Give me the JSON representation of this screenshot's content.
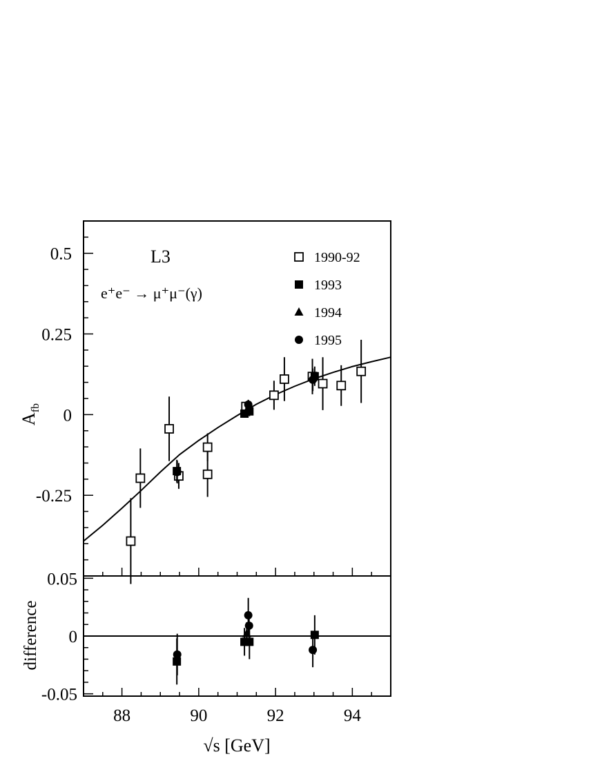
{
  "chart_data": [
    {
      "type": "scatter",
      "panel": "main",
      "title": "",
      "label_experiment": "L3",
      "label_process": "e⁺e⁻ → μ⁺μ⁻(γ)",
      "xlabel": "",
      "ylabel_main": "A",
      "ylabel_sub": "fb",
      "xlim": [
        87.0,
        95.0
      ],
      "ylim": [
        -0.5,
        0.6
      ],
      "yticks": [
        -0.25,
        0,
        0.25,
        0.5
      ],
      "ytick_labels": [
        "-0.25",
        "0",
        "0.25",
        "0.5"
      ],
      "legend_position": "top-right",
      "series": [
        {
          "name": "1990-92",
          "marker": "open-square",
          "points": [
            {
              "x": 88.23,
              "y": -0.392,
              "err": 0.133
            },
            {
              "x": 88.48,
              "y": -0.197,
              "err": 0.092
            },
            {
              "x": 89.23,
              "y": -0.044,
              "err": 0.1
            },
            {
              "x": 89.48,
              "y": -0.19,
              "err": 0.04
            },
            {
              "x": 90.23,
              "y": -0.101,
              "err": 0.043
            },
            {
              "x": 90.23,
              "y": -0.185,
              "err": 0.07
            },
            {
              "x": 91.23,
              "y": 0.025,
              "err": 0.01
            },
            {
              "x": 91.96,
              "y": 0.06,
              "err": 0.045
            },
            {
              "x": 92.23,
              "y": 0.11,
              "err": 0.068
            },
            {
              "x": 92.96,
              "y": 0.118,
              "err": 0.055
            },
            {
              "x": 93.23,
              "y": 0.096,
              "err": 0.082
            },
            {
              "x": 93.71,
              "y": 0.09,
              "err": 0.063
            },
            {
              "x": 94.23,
              "y": 0.134,
              "err": 0.098
            }
          ]
        },
        {
          "name": "1993",
          "marker": "filled-square",
          "points": [
            {
              "x": 89.43,
              "y": -0.175,
              "err": 0.035
            },
            {
              "x": 91.19,
              "y": 0.003,
              "err": 0.012
            },
            {
              "x": 91.32,
              "y": 0.01,
              "err": 0.015
            },
            {
              "x": 93.02,
              "y": 0.119,
              "err": 0.03
            }
          ]
        },
        {
          "name": "1994",
          "marker": "filled-triangle",
          "points": [
            {
              "x": 91.25,
              "y": 0.012,
              "err": 0.01
            }
          ]
        },
        {
          "name": "1995",
          "marker": "filled-circle",
          "points": [
            {
              "x": 89.44,
              "y": -0.178,
              "err": 0.035
            },
            {
              "x": 91.29,
              "y": 0.031,
              "err": 0.015
            },
            {
              "x": 92.97,
              "y": 0.108,
              "err": 0.035
            }
          ]
        }
      ],
      "curve": {
        "name": "",
        "x": [
          87.0,
          87.5,
          88.0,
          88.5,
          89.0,
          89.5,
          90.0,
          90.5,
          91.0,
          91.5,
          92.0,
          92.5,
          93.0,
          93.5,
          94.0,
          94.5,
          95.0
        ],
        "y": [
          -0.392,
          -0.343,
          -0.29,
          -0.235,
          -0.178,
          -0.124,
          -0.08,
          -0.04,
          -0.003,
          0.032,
          0.062,
          0.088,
          0.111,
          0.131,
          0.149,
          0.164,
          0.178
        ]
      }
    },
    {
      "type": "scatter",
      "panel": "difference",
      "title": "",
      "xlabel": "√s [GeV]",
      "ylabel": "difference",
      "xlim": [
        87.0,
        95.0
      ],
      "ylim": [
        -0.052,
        0.052
      ],
      "yticks": [
        -0.05,
        0,
        0.05
      ],
      "ytick_labels": [
        "-0.05",
        "0",
        "0.05"
      ],
      "xticks": [
        88,
        90,
        92,
        94
      ],
      "xtick_labels": [
        "88",
        "90",
        "92",
        "94"
      ],
      "series": [
        {
          "name": "1993",
          "marker": "filled-square",
          "points": [
            {
              "x": 89.43,
              "y": -0.022,
              "err": 0.02
            },
            {
              "x": 91.19,
              "y": -0.005,
              "err": 0.012
            },
            {
              "x": 91.32,
              "y": -0.005,
              "err": 0.015
            },
            {
              "x": 93.02,
              "y": 0.001,
              "err": 0.017
            }
          ]
        },
        {
          "name": "1994",
          "marker": "filled-triangle",
          "points": [
            {
              "x": 91.25,
              "y": 0.002,
              "err": 0.01
            }
          ]
        },
        {
          "name": "1995",
          "marker": "filled-circle",
          "points": [
            {
              "x": 89.44,
              "y": -0.016,
              "err": 0.018
            },
            {
              "x": 91.29,
              "y": 0.018,
              "err": 0.015
            },
            {
              "x": 91.31,
              "y": 0.009,
              "err": 0.01
            },
            {
              "x": 92.97,
              "y": -0.012,
              "err": 0.015
            }
          ]
        }
      ],
      "reference_line_y": 0
    }
  ]
}
